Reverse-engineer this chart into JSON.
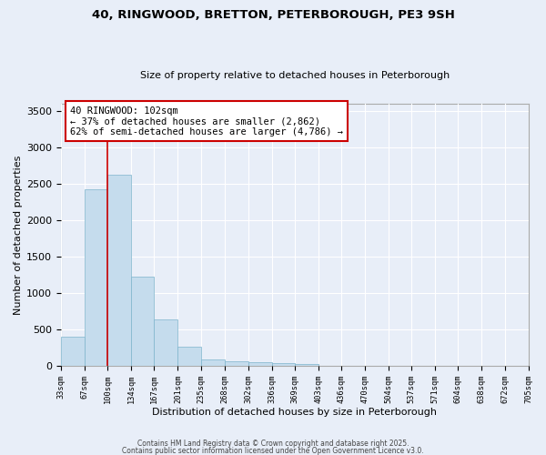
{
  "title_line1": "40, RINGWOOD, BRETTON, PETERBOROUGH, PE3 9SH",
  "title_line2": "Size of property relative to detached houses in Peterborough",
  "xlabel": "Distribution of detached houses by size in Peterborough",
  "ylabel": "Number of detached properties",
  "bar_color": "#c5dced",
  "bar_edge_color": "#7db4cc",
  "background_color": "#e8eef8",
  "grid_color": "#ffffff",
  "vline_color": "#cc0000",
  "vline_x": 100,
  "annotation_text": "40 RINGWOOD: 102sqm\n← 37% of detached houses are smaller (2,862)\n62% of semi-detached houses are larger (4,786) →",
  "annotation_color": "#cc0000",
  "bin_edges": [
    33,
    67,
    100,
    134,
    167,
    201,
    235,
    268,
    302,
    336,
    369,
    403,
    436,
    470,
    504,
    537,
    571,
    604,
    638,
    672,
    705
  ],
  "bar_heights": [
    400,
    2420,
    2620,
    1230,
    640,
    260,
    95,
    60,
    55,
    35,
    30,
    0,
    0,
    0,
    0,
    0,
    0,
    0,
    0,
    0
  ],
  "ylim": [
    0,
    3600
  ],
  "yticks": [
    0,
    500,
    1000,
    1500,
    2000,
    2500,
    3000,
    3500
  ],
  "footer_line1": "Contains HM Land Registry data © Crown copyright and database right 2025.",
  "footer_line2": "Contains public sector information licensed under the Open Government Licence v3.0."
}
